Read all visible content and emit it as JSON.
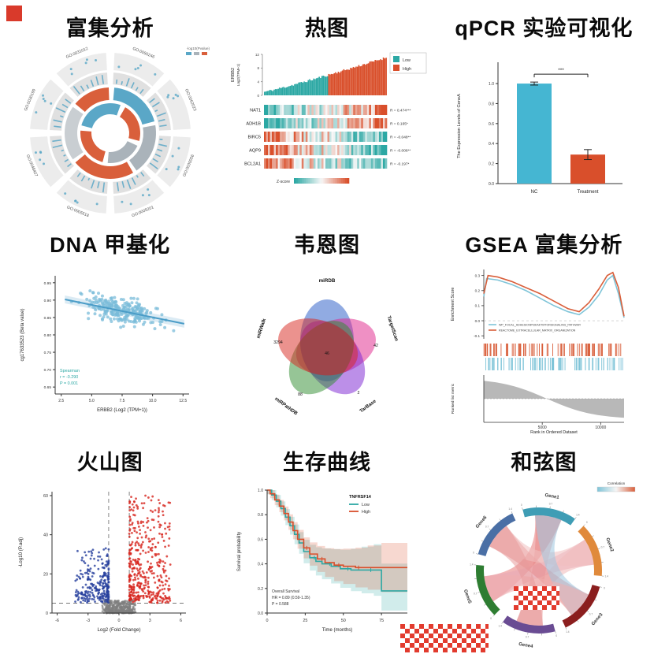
{
  "page": {
    "background": "#ffffff"
  },
  "cells": [
    {
      "id": "enrichment",
      "title": "富集分析"
    },
    {
      "id": "heatmap",
      "title": "热图"
    },
    {
      "id": "qpcr",
      "title": "qPCR 实验可视化"
    },
    {
      "id": "methylation",
      "title": "DNA 甲基化"
    },
    {
      "id": "venn",
      "title": "韦恩图"
    },
    {
      "id": "gsea",
      "title": "GSEA 富集分析"
    },
    {
      "id": "volcano",
      "title": "火山图"
    },
    {
      "id": "survival",
      "title": "生存曲线"
    },
    {
      "id": "chord",
      "title": "和弦图"
    }
  ],
  "chart_data": [
    {
      "type": "circular-enrichment",
      "title": "富集分析",
      "go_terms": [
        "GO:0050246",
        "GO:0062023",
        "GO:0030056",
        "GO:0005201",
        "GO:0005518",
        "GO:0048407",
        "GO:0030199",
        "GO:0031012"
      ],
      "legend_label": "-log10(Pvalue)",
      "colors": {
        "blue": "#5aa7c7",
        "gray": "#aab3ba",
        "red": "#d95f3b",
        "segment": "#ececec",
        "dot": "#5aa7c7"
      },
      "ring3": [
        {
          "start": -85,
          "end": -15,
          "color": "#5aa7c7"
        },
        {
          "start": -10,
          "end": 55,
          "color": "#aab3ba"
        },
        {
          "start": 60,
          "end": 140,
          "color": "#d95f3b"
        },
        {
          "start": 145,
          "end": 215,
          "color": "#c9ced2"
        },
        {
          "start": 220,
          "end": 268,
          "color": "#d95f3b"
        }
      ],
      "ring4": [
        {
          "start": -60,
          "end": 15,
          "color": "#d95f3b"
        },
        {
          "start": 25,
          "end": 95,
          "color": "#aab3ba"
        },
        {
          "start": 105,
          "end": 185,
          "color": "#d95f3b"
        },
        {
          "start": 195,
          "end": 290,
          "color": "#5aa7c7"
        }
      ]
    },
    {
      "type": "expression-heatmap",
      "top_label_gene": "ERBB2",
      "top_label_unit": "Log2(TPM+1)",
      "y_ticks": [
        0,
        4,
        8,
        12
      ],
      "legend": {
        "items": [
          {
            "label": "Low",
            "color": "#2ca8a4"
          },
          {
            "label": "High",
            "color": "#d94f2b"
          }
        ]
      },
      "rows": [
        {
          "gene": "NAT1",
          "r_label": "R = 0.474***"
        },
        {
          "gene": "ADH1B",
          "r_label": "R = 0.165*"
        },
        {
          "gene": "BIRC5",
          "r_label": "R = -0.048**"
        },
        {
          "gene": "AQP9",
          "r_label": "R = -0.006**"
        },
        {
          "gene": "BCL2A1",
          "r_label": "R = -0.197*"
        }
      ],
      "colorbar": {
        "label": "Z-score",
        "low": "#2ca8a4",
        "mid": "#f7f7f7",
        "high": "#d94f2b"
      },
      "n_samples": 90
    },
    {
      "type": "bar",
      "categories": [
        "NC",
        "Treatment"
      ],
      "values": [
        1.0,
        0.29
      ],
      "errors": [
        0.015,
        0.05
      ],
      "bar_colors": [
        "#45b6d2",
        "#d94f2b"
      ],
      "ylabel": "The Expression Levels of GeneA",
      "ylim": [
        0,
        1.15
      ],
      "yticks": [
        0.0,
        0.2,
        0.4,
        0.6,
        0.8,
        1.0
      ],
      "significance": "***"
    },
    {
      "type": "scatter",
      "xlabel": "ERBB2 (Log2 (TPM+1))",
      "ylabel": "cg17633523 (Beta value)",
      "xlim": [
        2,
        13
      ],
      "ylim": [
        0.63,
        0.97
      ],
      "xticks": [
        2.5,
        5.0,
        7.5,
        10.0,
        12.5
      ],
      "yticks": [
        0.65,
        0.7,
        0.75,
        0.8,
        0.85,
        0.9,
        0.95
      ],
      "n_points": 260,
      "point_color": "#7bbcd9",
      "line_color": "#4a9cc7",
      "trend": {
        "x1": 2.8,
        "y1": 0.902,
        "x2": 12.6,
        "y2": 0.832
      },
      "noise_sd": 0.028,
      "annotation": {
        "lines": [
          "Spearman",
          "r = -0.290",
          "P = 0.001"
        ],
        "color": "#2ca8a4"
      }
    },
    {
      "type": "venn",
      "sets": [
        {
          "label": "miRDB",
          "color": "#2457c5"
        },
        {
          "label": "TargetScan",
          "color": "#e0218a"
        },
        {
          "label": "TarBase",
          "color": "#7a1fd1"
        },
        {
          "label": "miRPathDB",
          "color": "#2e8b2e"
        },
        {
          "label": "miRWalk",
          "color": "#d7261e"
        }
      ],
      "counts": [
        {
          "value": "3294",
          "x": -62,
          "y": -8
        },
        {
          "value": "42",
          "x": 62,
          "y": -4
        },
        {
          "value": "88",
          "x": -34,
          "y": 58
        },
        {
          "value": "2",
          "x": 40,
          "y": 56
        },
        {
          "value": "46",
          "x": 0,
          "y": 6
        }
      ]
    },
    {
      "type": "gsea",
      "ylabel": "Enrichment Score",
      "ylabel2": "Ranked list metric",
      "xlabel": "Rank in Ordered Dataset",
      "xticks": [
        5000,
        10000
      ],
      "x_max": 12000,
      "es_yticks": [
        -0.1,
        0.0,
        0.1,
        0.2,
        0.3
      ],
      "series": [
        {
          "name": "WP_FOCAL_ADHESIONPI3KAKTMTORSIGNALING_PATHWAY",
          "color": "#7fc4d8",
          "points": [
            [
              0,
              0.16
            ],
            [
              0.02,
              0.28
            ],
            [
              0.1,
              0.27
            ],
            [
              0.2,
              0.24
            ],
            [
              0.3,
              0.2
            ],
            [
              0.4,
              0.15
            ],
            [
              0.5,
              0.1
            ],
            [
              0.6,
              0.06
            ],
            [
              0.68,
              0.04
            ],
            [
              0.75,
              0.09
            ],
            [
              0.82,
              0.17
            ],
            [
              0.88,
              0.27
            ],
            [
              0.92,
              0.3
            ],
            [
              0.96,
              0.18
            ],
            [
              1,
              0.02
            ]
          ]
        },
        {
          "name": "REACTOME_EXTRACELLULAR_MATRIX_ORGANIZATION",
          "color": "#d95f3b",
          "points": [
            [
              0,
              0.18
            ],
            [
              0.03,
              0.3
            ],
            [
              0.1,
              0.29
            ],
            [
              0.2,
              0.26
            ],
            [
              0.3,
              0.22
            ],
            [
              0.4,
              0.18
            ],
            [
              0.5,
              0.13
            ],
            [
              0.6,
              0.08
            ],
            [
              0.68,
              0.06
            ],
            [
              0.75,
              0.12
            ],
            [
              0.82,
              0.21
            ],
            [
              0.88,
              0.3
            ],
            [
              0.92,
              0.32
            ],
            [
              0.96,
              0.22
            ],
            [
              1,
              0.03
            ]
          ]
        }
      ],
      "n_ticks": 90
    },
    {
      "type": "volcano",
      "xlabel": "Log2 (Fold Change)",
      "ylabel": "-Log10 (P.adj)",
      "xlim": [
        -6.5,
        6.5
      ],
      "ylim": [
        0,
        62
      ],
      "xticks": [
        -6,
        -3,
        0,
        3,
        6
      ],
      "yticks": [
        0,
        20,
        40,
        60
      ],
      "vlines": [
        -1,
        1
      ],
      "hline": 5,
      "colors": {
        "up": "#d7261e",
        "down": "#27409e",
        "ns": "#7f7f7f"
      },
      "n_up": 420,
      "n_down": 260,
      "n_ns": 420
    },
    {
      "type": "survival",
      "legend_title": "TNFRSF14",
      "xlabel": "Time (months)",
      "ylabel": "Survival probability",
      "xticks": [
        0,
        25,
        50,
        75
      ],
      "yticks": [
        0.0,
        0.2,
        0.4,
        0.6,
        0.8,
        1.0
      ],
      "x_max": 92,
      "annotation": [
        "Overall Survival",
        "HR = 0.89 (0.59-1.35)",
        "P = 0.588"
      ],
      "groups": [
        {
          "label": "Low",
          "color": "#2ca8a4",
          "band": 0.1,
          "steps": [
            [
              0,
              1.0
            ],
            [
              3,
              0.96
            ],
            [
              6,
              0.91
            ],
            [
              9,
              0.85
            ],
            [
              12,
              0.78
            ],
            [
              15,
              0.71
            ],
            [
              18,
              0.64
            ],
            [
              21,
              0.57
            ],
            [
              24,
              0.5
            ],
            [
              28,
              0.45
            ],
            [
              32,
              0.42
            ],
            [
              36,
              0.4
            ],
            [
              42,
              0.38
            ],
            [
              48,
              0.36
            ],
            [
              55,
              0.35
            ],
            [
              62,
              0.35
            ],
            [
              70,
              0.35
            ],
            [
              75,
              0.18
            ],
            [
              92,
              0.18
            ]
          ]
        },
        {
          "label": "High",
          "color": "#d94f2b",
          "band": 0.09,
          "steps": [
            [
              0,
              1.0
            ],
            [
              2,
              0.97
            ],
            [
              5,
              0.92
            ],
            [
              8,
              0.87
            ],
            [
              11,
              0.81
            ],
            [
              14,
              0.74
            ],
            [
              17,
              0.67
            ],
            [
              20,
              0.6
            ],
            [
              24,
              0.53
            ],
            [
              28,
              0.48
            ],
            [
              33,
              0.44
            ],
            [
              38,
              0.41
            ],
            [
              44,
              0.39
            ],
            [
              50,
              0.38
            ],
            [
              58,
              0.37
            ],
            [
              66,
              0.37
            ],
            [
              75,
              0.37
            ],
            [
              92,
              0.37
            ]
          ]
        }
      ]
    },
    {
      "type": "chord",
      "legend_title": "Correlation",
      "genes": [
        {
          "name": "Gene1",
          "color": "#3f9db5"
        },
        {
          "name": "Gene2",
          "color": "#e08a3c"
        },
        {
          "name": "Gene3",
          "color": "#8b1e1e"
        },
        {
          "name": "Gene4",
          "color": "#6a4c93"
        },
        {
          "name": "Gene5",
          "color": "#2e7d32"
        },
        {
          "name": "Gene6",
          "color": "#4a6fa5"
        }
      ],
      "axis_ticks": [
        "0",
        "0.7",
        "1.4",
        "2.1",
        "2.8"
      ],
      "ribbons": [
        {
          "from": 0,
          "to": 3,
          "color": "#e89a9a"
        },
        {
          "from": 0,
          "to": 4,
          "color": "#e87a7a"
        },
        {
          "from": 1,
          "to": 4,
          "color": "#e8a7b6"
        },
        {
          "from": 1,
          "to": 3,
          "color": "#f0b8b8"
        },
        {
          "from": 5,
          "to": 2,
          "color": "#e88888"
        },
        {
          "from": 5,
          "to": 1,
          "color": "#f0c0c0"
        },
        {
          "from": 0,
          "to": 2,
          "color": "#9fc6e0"
        },
        {
          "from": 4,
          "to": 2,
          "color": "#f0afaf"
        },
        {
          "from": 5,
          "to": 3,
          "color": "#e89a9a"
        }
      ]
    }
  ]
}
